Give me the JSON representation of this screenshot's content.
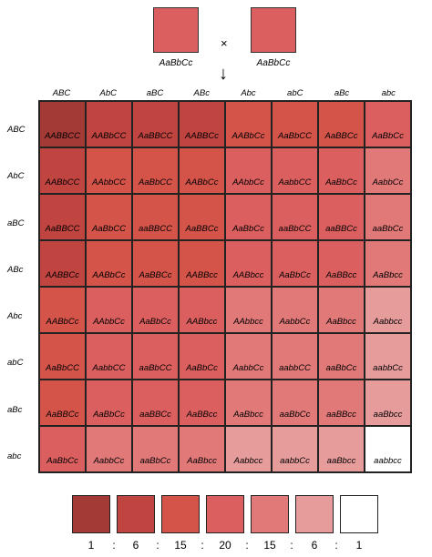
{
  "parents": [
    {
      "label": "AaBbCc",
      "color": "#dc5f5f"
    },
    {
      "label": "AaBbCc",
      "color": "#dc5f5f"
    }
  ],
  "cross_symbol": "×",
  "arrow_symbol": "↓",
  "gametes": [
    "ABC",
    "AbC",
    "aBC",
    "ABc",
    "Abc",
    "abC",
    "aBc",
    "abc"
  ],
  "row_gametes": [
    "ABC",
    "AbC",
    "aBC",
    "ABc",
    "Abc",
    "abC",
    "aBc",
    "abc"
  ],
  "shade_colors": [
    "#a33a35",
    "#c04440",
    "#d4544a",
    "#dc5f5f",
    "#e27979",
    "#e79c9c",
    "#ffffff"
  ],
  "grid": [
    [
      "AABBCC",
      "AABbCC",
      "AaBBCC",
      "AABBCc",
      "AABbCc",
      "AaBbCC",
      "AaBBCc",
      "AaBbCc"
    ],
    [
      "AABbCC",
      "AAbbCC",
      "AaBbCC",
      "AABbCc",
      "AAbbCc",
      "AabbCC",
      "AaBbCc",
      "AabbCc"
    ],
    [
      "AaBBCC",
      "AaBbCC",
      "aaBBCC",
      "AaBBCc",
      "AaBbCc",
      "aaBbCC",
      "aaBBCc",
      "aaBbCc"
    ],
    [
      "AABBCc",
      "AABbCc",
      "AaBBCc",
      "AABBcc",
      "AABbcc",
      "AaBbCc",
      "AaBBcc",
      "AaBbcc"
    ],
    [
      "AABbCc",
      "AAbbCc",
      "AaBbCc",
      "AABbcc",
      "AAbbcc",
      "AabbCc",
      "AaBbcc",
      "Aabbcc"
    ],
    [
      "AaBbCC",
      "AabbCC",
      "aaBbCC",
      "AaBbCc",
      "AabbCc",
      "aabbCC",
      "aaBbCc",
      "aabbCc"
    ],
    [
      "AaBBCc",
      "AaBbCc",
      "aaBBCc",
      "AaBBcc",
      "AaBbcc",
      "aaBbCc",
      "aaBBcc",
      "aaBbcc"
    ],
    [
      "AaBbCc",
      "AabbCc",
      "aaBbCc",
      "AaBbcc",
      "Aabbcc",
      "aabbCc",
      "aaBbcc",
      "aabbcc"
    ]
  ],
  "ratio": [
    "1",
    ":",
    "6",
    ":",
    "15",
    ":",
    "20",
    ":",
    "15",
    ":",
    "6",
    ":",
    "1"
  ]
}
